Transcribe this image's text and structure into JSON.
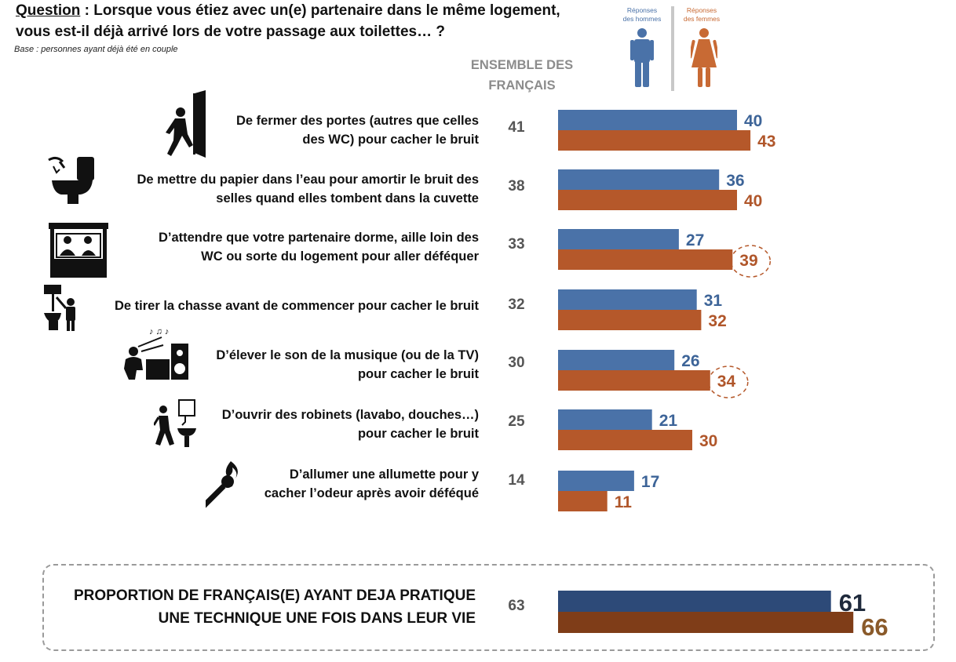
{
  "question": {
    "label": "Question",
    "text_line1": " : Lorsque vous étiez avec un(e) partenaire dans le même logement,",
    "text_line2": "vous est-il déjà arrivé lors de votre passage aux toilettes… ?",
    "base": "Base : personnes ayant déjà été en couple"
  },
  "ensemble_header": {
    "line1": "ENSEMBLE DES",
    "line2": "FRANÇAIS"
  },
  "legend": {
    "men_line1": "Réponses",
    "men_line2": "des hommes",
    "women_line1": "Réponses",
    "women_line2": "des femmes",
    "men_icon": "man-icon",
    "women_icon": "woman-icon"
  },
  "colors": {
    "men": "#4a72a8",
    "women": "#b5582a",
    "men_label": "#3d6498",
    "women_label": "#b0562a",
    "footer_men": "#2d4a78",
    "footer_women": "#7f3d18",
    "footer_men_label": "#1f2a3c",
    "footer_women_label": "#8a5a2a"
  },
  "rows": [
    {
      "label_line1": "De fermer des portes (autres que celles",
      "label_line2": "des WC) pour cacher le bruit",
      "total": "41",
      "icon": "door-exit-icon"
    },
    {
      "label_line1": "De mettre du papier dans l’eau pour amortir le bruit des",
      "label_line2": "selles quand elles tombent dans la cuvette",
      "total": "38",
      "icon": "toilet-paper-icon"
    },
    {
      "label_line1": "D’attendre que votre partenaire dorme, aille loin des",
      "label_line2": "WC ou sorte du logement pour aller déféquer",
      "total": "33",
      "icon": "sleeping-partner-icon"
    },
    {
      "label_line1": "",
      "label_line2": "De tirer la chasse avant de commencer pour cacher le bruit",
      "total": "32",
      "icon": "flush-toilet-icon"
    },
    {
      "label_line1": "D’élever le son de la musique (ou de la TV)",
      "label_line2": "pour cacher le bruit",
      "total": "30",
      "icon": "music-speaker-icon"
    },
    {
      "label_line1": "D’ouvrir des robinets (lavabo, douches…)",
      "label_line2": "pour cacher le bruit",
      "total": "25",
      "icon": "faucet-icon"
    },
    {
      "label_line1": "D’allumer une allumette pour y",
      "label_line2": "cacher l’odeur après avoir déféqué",
      "total": "14",
      "icon": "match-icon"
    }
  ],
  "footer": {
    "line1": "PROPORTION DE FRANÇAIS(E) AYANT DEJA PRATIQUE",
    "line2": "UNE TECHNIQUE UNE FOIS DANS LEUR VIE",
    "total": "63"
  },
  "chart_data": {
    "type": "bar",
    "orientation": "horizontal",
    "categories": [
      "De fermer des portes (autres que celles des WC) pour cacher le bruit",
      "De mettre du papier dans l’eau pour amortir le bruit des selles quand elles tombent dans la cuvette",
      "D’attendre que votre partenaire dorme, aille loin des WC ou sorte du logement pour aller déféquer",
      "De tirer la chasse avant de commencer pour cacher le bruit",
      "D’élever le son de la musique (ou de la TV) pour cacher le bruit",
      "D’ouvrir des robinets (lavabo, douches…) pour cacher le bruit",
      "D’allumer une allumette pour y cacher l’odeur après avoir déféqué"
    ],
    "series": [
      {
        "name": "Réponses des hommes",
        "values": [
          40,
          36,
          27,
          31,
          26,
          21,
          17
        ]
      },
      {
        "name": "Réponses des femmes",
        "values": [
          43,
          40,
          39,
          32,
          34,
          30,
          11
        ]
      }
    ],
    "ensemble": [
      41,
      38,
      33,
      32,
      30,
      25,
      14
    ],
    "highlighted": [
      {
        "category_index": 2,
        "series": "Réponses des femmes"
      },
      {
        "category_index": 4,
        "series": "Réponses des femmes"
      }
    ],
    "summary": {
      "label": "PROPORTION DE FRANÇAIS(E) AYANT DEJA PRATIQUE UNE TECHNIQUE UNE FOIS DANS LEUR VIE",
      "ensemble": 63,
      "men": 61,
      "women": 66
    },
    "xlim": [
      0,
      100
    ],
    "grid": false
  }
}
